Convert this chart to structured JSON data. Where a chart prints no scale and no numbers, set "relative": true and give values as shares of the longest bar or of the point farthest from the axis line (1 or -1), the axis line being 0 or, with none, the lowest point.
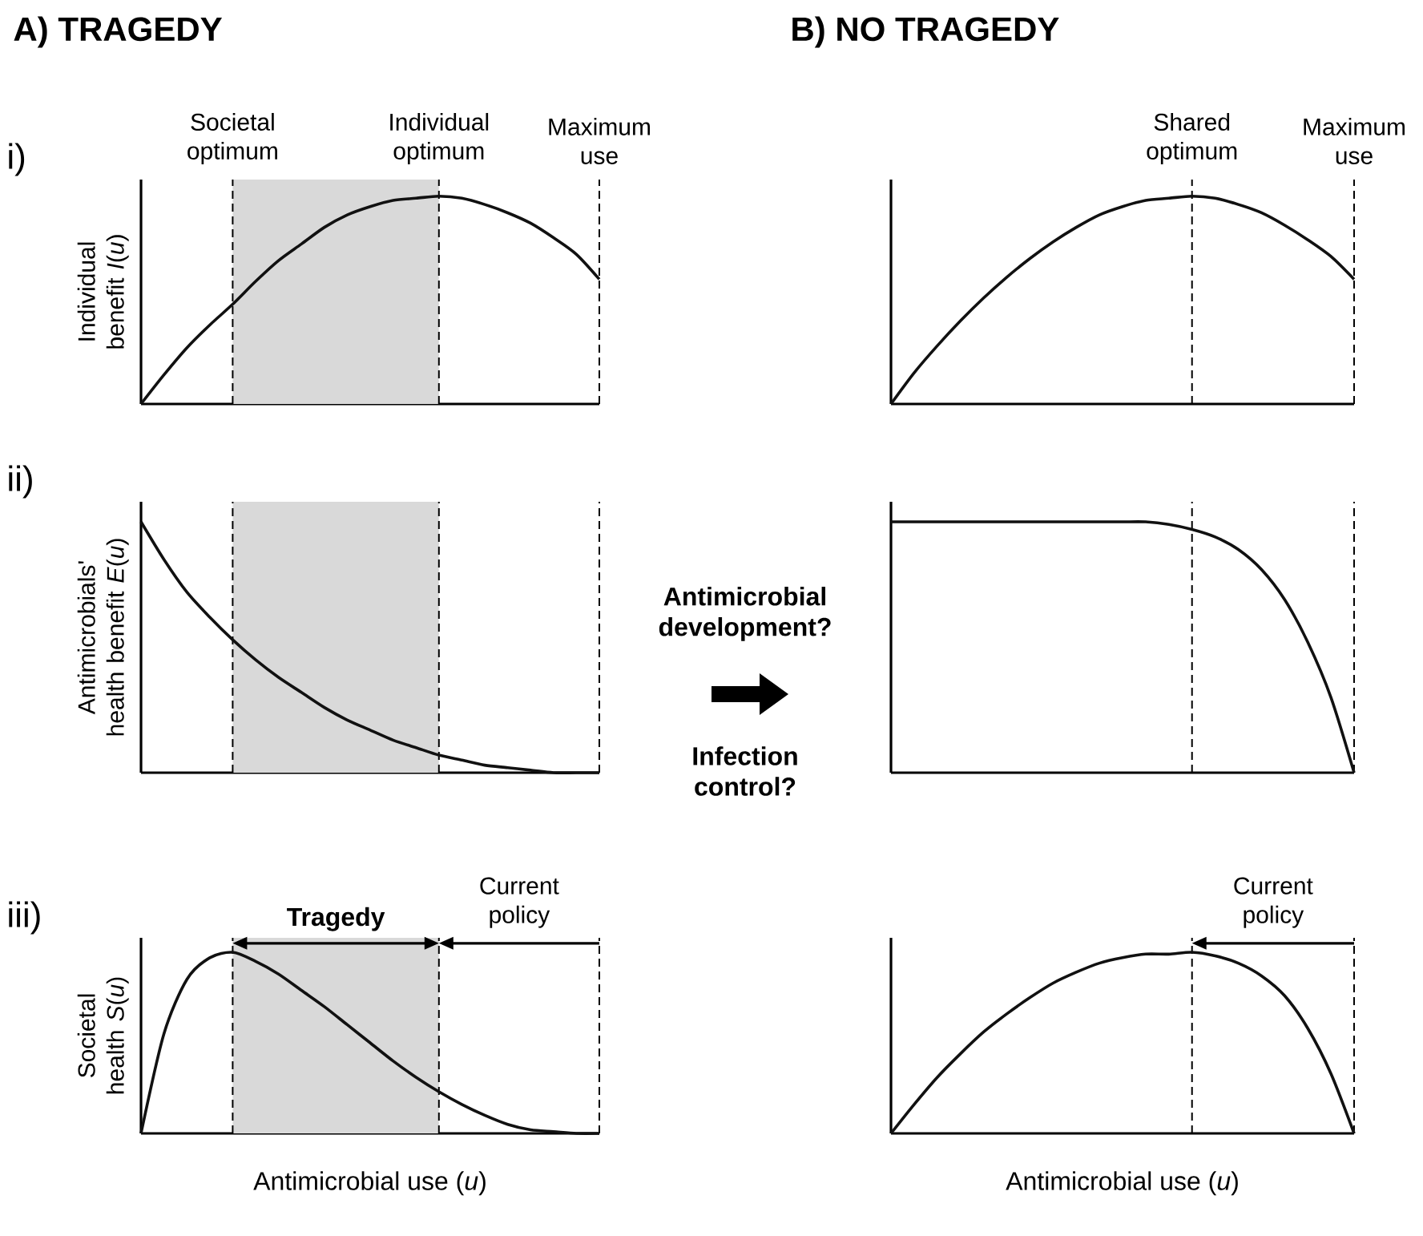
{
  "chart_data": [
    {
      "type": "line",
      "title": "A) TRAGEDY",
      "ylabel": "Individual benefit *I*(*u*)",
      "relative": true,
      "categories": [
        null,
        null,
        null,
        null,
        null,
        null,
        null,
        null,
        null,
        null,
        null,
        null,
        null,
        null,
        null,
        null,
        null,
        null,
        null,
        null,
        null
      ],
      "series": [
        {
          "color": "#111111",
          "values": [
            0,
            0.14,
            0.27,
            0.38,
            0.48,
            0.59,
            0.69,
            0.77,
            0.85,
            0.91,
            0.95,
            0.98,
            0.99,
            1.0,
            0.99,
            0.96,
            0.92,
            0.87,
            0.8,
            0.72,
            0.6
          ]
        }
      ],
      "annotations": [
        "i)",
        "Societal optimum",
        "Individual optimum",
        "Maximum use"
      ]
    },
    {
      "type": "line",
      "title": "B) NO TRAGEDY",
      "relative": true,
      "categories": [
        null,
        null,
        null,
        null,
        null,
        null,
        null,
        null,
        null,
        null,
        null,
        null,
        null,
        null,
        null,
        null,
        null,
        null,
        null,
        null,
        null
      ],
      "series": [
        {
          "color": "#111111",
          "values": [
            0,
            0.15,
            0.28,
            0.4,
            0.51,
            0.61,
            0.7,
            0.78,
            0.85,
            0.91,
            0.95,
            0.98,
            0.99,
            1.0,
            0.99,
            0.96,
            0.92,
            0.86,
            0.79,
            0.71,
            0.6
          ]
        }
      ],
      "annotations": [
        "Shared optimum",
        "Maximum use"
      ]
    },
    {
      "type": "line",
      "ylabel": "Antimicrobials' health benefit *E*(*u*)",
      "relative": true,
      "categories": [
        null,
        null,
        null,
        null,
        null,
        null,
        null,
        null,
        null,
        null,
        null,
        null,
        null,
        null,
        null,
        null,
        null,
        null,
        null,
        null,
        null
      ],
      "series": [
        {
          "color": "#111111",
          "values": [
            1,
            0.85,
            0.72,
            0.62,
            0.53,
            0.45,
            0.38,
            0.32,
            0.26,
            0.21,
            0.17,
            0.13,
            0.1,
            0.07,
            0.05,
            0.03,
            0.02,
            0.01,
            0,
            0,
            0
          ]
        }
      ],
      "annotations": [
        "ii)"
      ]
    },
    {
      "type": "line",
      "relative": true,
      "categories": [
        null,
        null,
        null,
        null,
        null,
        null,
        null,
        null,
        null,
        null,
        null,
        null,
        null,
        null,
        null,
        null,
        null,
        null,
        null,
        null,
        null
      ],
      "series": [
        {
          "color": "#111111",
          "values": [
            1,
            1,
            1,
            1,
            1,
            1,
            1,
            1,
            1,
            1,
            1,
            1,
            0.99,
            0.97,
            0.94,
            0.89,
            0.81,
            0.69,
            0.52,
            0.3,
            0
          ]
        }
      ],
      "annotations": [
        "Antimicrobial development?",
        "Infection control?"
      ]
    },
    {
      "type": "line",
      "ylabel": "Societal health *S*(*u*)",
      "xlabel": "Antimicrobial use (*u*)",
      "relative": true,
      "categories": [
        null,
        null,
        null,
        null,
        null,
        null,
        null,
        null,
        null,
        null,
        null,
        null,
        null,
        null,
        null,
        null,
        null,
        null,
        null,
        null,
        null
      ],
      "series": [
        {
          "color": "#111111",
          "values": [
            0,
            0.55,
            0.85,
            0.97,
            1,
            0.95,
            0.88,
            0.79,
            0.7,
            0.6,
            0.5,
            0.4,
            0.31,
            0.23,
            0.16,
            0.1,
            0.05,
            0.02,
            0.01,
            0,
            0
          ]
        }
      ],
      "annotations": [
        "iii)",
        "Tragedy",
        "Current policy"
      ]
    },
    {
      "type": "line",
      "xlabel": "Antimicrobial use (*u*)",
      "relative": true,
      "categories": [
        null,
        null,
        null,
        null,
        null,
        null,
        null,
        null,
        null,
        null,
        null,
        null,
        null,
        null,
        null,
        null,
        null,
        null,
        null,
        null,
        null
      ],
      "series": [
        {
          "color": "#111111",
          "values": [
            0,
            0.16,
            0.31,
            0.44,
            0.56,
            0.66,
            0.75,
            0.83,
            0.89,
            0.94,
            0.97,
            0.99,
            0.99,
            1.0,
            0.98,
            0.94,
            0.87,
            0.76,
            0.58,
            0.33,
            0
          ]
        }
      ],
      "annotations": [
        "Current policy"
      ]
    }
  ]
}
